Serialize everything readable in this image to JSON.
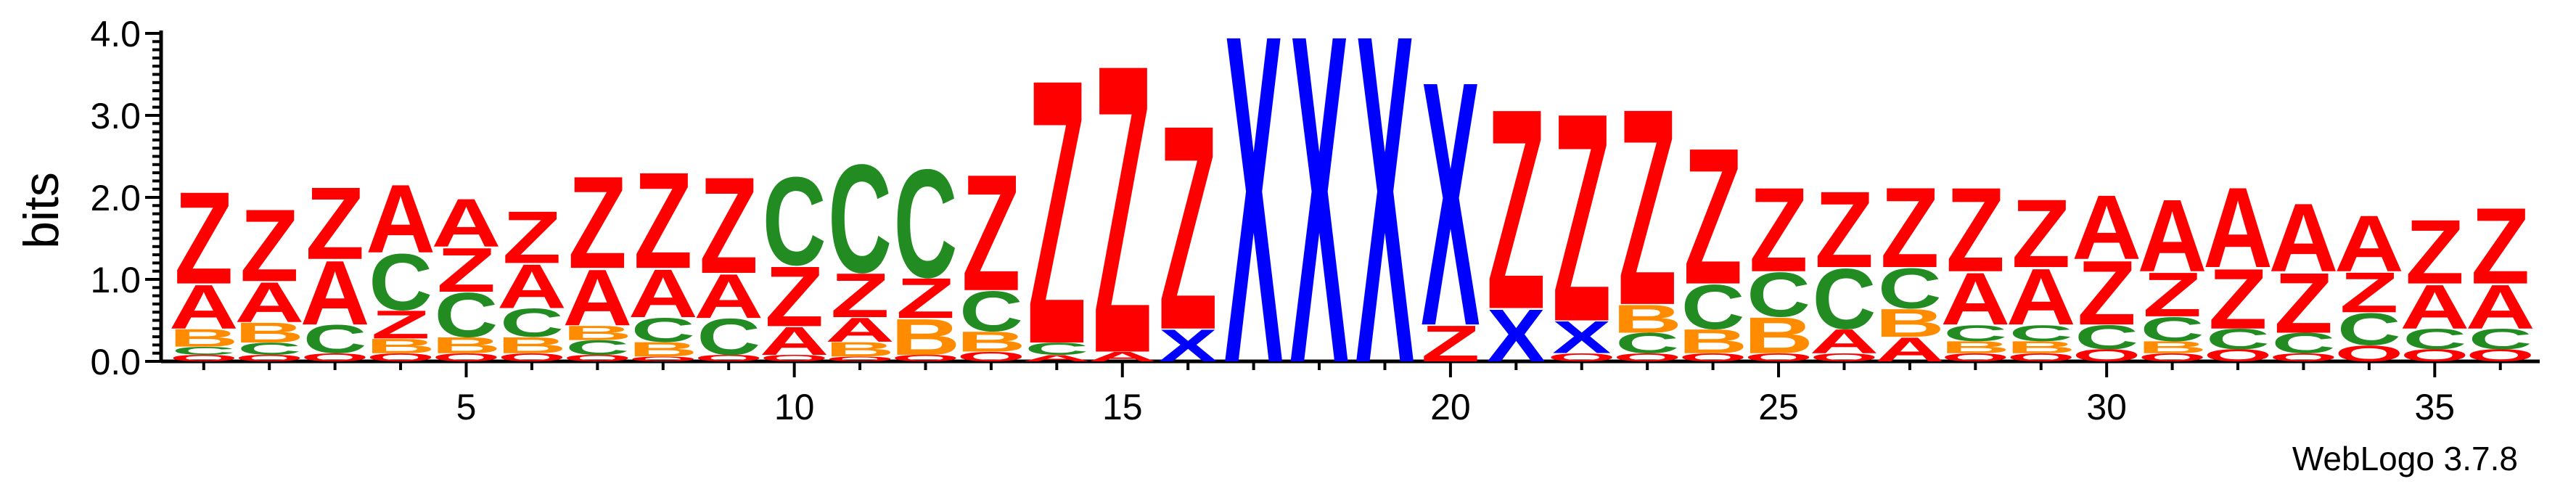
{
  "chart_data": {
    "type": "sequence-logo",
    "ylabel": "bits",
    "ylim": [
      0,
      4.0
    ],
    "yticks": [
      "0.0",
      "1.0",
      "2.0",
      "3.0",
      "4.0"
    ],
    "xticks": [
      5,
      10,
      15,
      20,
      25,
      30,
      35
    ],
    "colors": {
      "Z": "#ff0000",
      "A": "#ff0000",
      "X": "#0000ff",
      "C": "#228b22",
      "B": "#ff8c00",
      "other": "#ff0000"
    },
    "positions": [
      {
        "pos": 1,
        "letters": [
          [
            "Z",
            1.15
          ],
          [
            "A",
            0.55
          ],
          [
            "B",
            0.22
          ],
          [
            "C",
            0.1
          ],
          [
            "O",
            0.08
          ]
        ]
      },
      {
        "pos": 2,
        "letters": [
          [
            "Z",
            0.9
          ],
          [
            "A",
            0.5
          ],
          [
            "B",
            0.25
          ],
          [
            "C",
            0.15
          ],
          [
            "O",
            0.08
          ]
        ]
      },
      {
        "pos": 3,
        "letters": [
          [
            "Z",
            0.9
          ],
          [
            "A",
            0.8
          ],
          [
            "C",
            0.35
          ],
          [
            "O",
            0.1
          ]
        ]
      },
      {
        "pos": 4,
        "letters": [
          [
            "A",
            0.85
          ],
          [
            "C",
            0.7
          ],
          [
            "Z",
            0.35
          ],
          [
            "B",
            0.18
          ],
          [
            "O",
            0.1
          ]
        ]
      },
      {
        "pos": 5,
        "letters": [
          [
            "A",
            0.6
          ],
          [
            "C",
            0.55
          ],
          [
            "Z",
            0.55
          ],
          [
            "B",
            0.2
          ],
          [
            "O",
            0.1
          ]
        ]
      },
      {
        "pos": 6,
        "letters": [
          [
            "Z",
            0.65
          ],
          [
            "A",
            0.55
          ],
          [
            "C",
            0.35
          ],
          [
            "B",
            0.2
          ],
          [
            "O",
            0.1
          ]
        ]
      },
      {
        "pos": 7,
        "letters": [
          [
            "Z",
            1.15
          ],
          [
            "A",
            0.7
          ],
          [
            "C",
            0.18
          ],
          [
            "B",
            0.18
          ],
          [
            "O",
            0.08
          ]
        ]
      },
      {
        "pos": 8,
        "letters": [
          [
            "Z",
            1.2
          ],
          [
            "A",
            0.6
          ],
          [
            "C",
            0.3
          ],
          [
            "B",
            0.18
          ],
          [
            "O",
            0.06
          ]
        ]
      },
      {
        "pos": 9,
        "letters": [
          [
            "Z",
            1.2
          ],
          [
            "A",
            0.55
          ],
          [
            "C",
            0.45
          ],
          [
            "O",
            0.08
          ]
        ]
      },
      {
        "pos": 10,
        "letters": [
          [
            "C",
            1.1
          ],
          [
            "Z",
            0.75
          ],
          [
            "A",
            0.35
          ],
          [
            "O",
            0.08
          ]
        ]
      },
      {
        "pos": 11,
        "letters": [
          [
            "C",
            1.35
          ],
          [
            "Z",
            0.55
          ],
          [
            "A",
            0.3
          ],
          [
            "B",
            0.18
          ],
          [
            "O",
            0.06
          ]
        ]
      },
      {
        "pos": 12,
        "letters": [
          [
            "C",
            1.35
          ],
          [
            "Z",
            0.5
          ],
          [
            "B",
            0.45
          ],
          [
            "O",
            0.08
          ]
        ]
      },
      {
        "pos": 13,
        "letters": [
          [
            "Z",
            1.45
          ],
          [
            "C",
            0.5
          ],
          [
            "B",
            0.25
          ],
          [
            "O",
            0.12
          ]
        ]
      },
      {
        "pos": 14,
        "letters": [
          [
            "Z",
            3.3
          ],
          [
            "C",
            0.15
          ],
          [
            "A",
            0.08
          ]
        ]
      },
      {
        "pos": 15,
        "letters": [
          [
            "Z",
            3.6
          ],
          [
            "A",
            0.12
          ]
        ]
      },
      {
        "pos": 16,
        "letters": [
          [
            "Z",
            2.55
          ],
          [
            "X",
            0.4
          ]
        ]
      },
      {
        "pos": 17,
        "letters": [
          [
            "X",
            4.1
          ]
        ]
      },
      {
        "pos": 18,
        "letters": [
          [
            "X",
            4.1
          ]
        ]
      },
      {
        "pos": 19,
        "letters": [
          [
            "X",
            4.1
          ]
        ]
      },
      {
        "pos": 20,
        "letters": [
          [
            "X",
            3.05
          ],
          [
            "Z",
            0.45
          ]
        ]
      },
      {
        "pos": 21,
        "letters": [
          [
            "Z",
            2.5
          ],
          [
            "X",
            0.65
          ]
        ]
      },
      {
        "pos": 22,
        "letters": [
          [
            "Z",
            2.6
          ],
          [
            "X",
            0.4
          ],
          [
            "O",
            0.1
          ]
        ]
      },
      {
        "pos": 23,
        "letters": [
          [
            "Z",
            2.45
          ],
          [
            "B",
            0.35
          ],
          [
            "C",
            0.25
          ],
          [
            "O",
            0.1
          ]
        ]
      },
      {
        "pos": 24,
        "letters": [
          [
            "Z",
            1.7
          ],
          [
            "C",
            0.55
          ],
          [
            "B",
            0.3
          ],
          [
            "O",
            0.1
          ]
        ]
      },
      {
        "pos": 25,
        "letters": [
          [
            "Z",
            1.05
          ],
          [
            "C",
            0.55
          ],
          [
            "B",
            0.45
          ],
          [
            "O",
            0.1
          ]
        ]
      },
      {
        "pos": 26,
        "letters": [
          [
            "Z",
            0.95
          ],
          [
            "C",
            0.75
          ],
          [
            "A",
            0.3
          ],
          [
            "O",
            0.1
          ]
        ]
      },
      {
        "pos": 27,
        "letters": [
          [
            "Z",
            1.0
          ],
          [
            "C",
            0.5
          ],
          [
            "B",
            0.35
          ],
          [
            "A",
            0.3
          ]
        ]
      },
      {
        "pos": 28,
        "letters": [
          [
            "Z",
            1.05
          ],
          [
            "A",
            0.65
          ],
          [
            "C",
            0.2
          ],
          [
            "B",
            0.15
          ],
          [
            "O",
            0.1
          ]
        ]
      },
      {
        "pos": 29,
        "letters": [
          [
            "Z",
            0.85
          ],
          [
            "A",
            0.7
          ],
          [
            "C",
            0.2
          ],
          [
            "B",
            0.15
          ],
          [
            "O",
            0.1
          ]
        ]
      },
      {
        "pos": 30,
        "letters": [
          [
            "Z",
            0.8
          ],
          [
            "A",
            0.8
          ],
          [
            "C",
            0.3
          ],
          [
            "O",
            0.15
          ]
        ]
      },
      {
        "pos": 31,
        "letters": [
          [
            "A",
            0.9
          ],
          [
            "Z",
            0.55
          ],
          [
            "C",
            0.3
          ],
          [
            "B",
            0.15
          ],
          [
            "O",
            0.1
          ]
        ]
      },
      {
        "pos": 32,
        "letters": [
          [
            "A",
            1.0
          ],
          [
            "Z",
            0.75
          ],
          [
            "C",
            0.25
          ],
          [
            "O",
            0.15
          ]
        ]
      },
      {
        "pos": 33,
        "letters": [
          [
            "A",
            0.85
          ],
          [
            "Z",
            0.75
          ],
          [
            "C",
            0.25
          ],
          [
            "O",
            0.1
          ]
        ]
      },
      {
        "pos": 34,
        "letters": [
          [
            "A",
            0.7
          ],
          [
            "Z",
            0.5
          ],
          [
            "C",
            0.4
          ],
          [
            "O",
            0.2
          ]
        ]
      },
      {
        "pos": 35,
        "letters": [
          [
            "Z",
            0.8
          ],
          [
            "A",
            0.55
          ],
          [
            "C",
            0.25
          ],
          [
            "O",
            0.15
          ]
        ]
      },
      {
        "pos": 36,
        "letters": [
          [
            "Z",
            0.95
          ],
          [
            "A",
            0.55
          ],
          [
            "C",
            0.25
          ],
          [
            "O",
            0.15
          ]
        ]
      }
    ]
  },
  "footer": {
    "credit": "WebLogo 3.7.8"
  }
}
